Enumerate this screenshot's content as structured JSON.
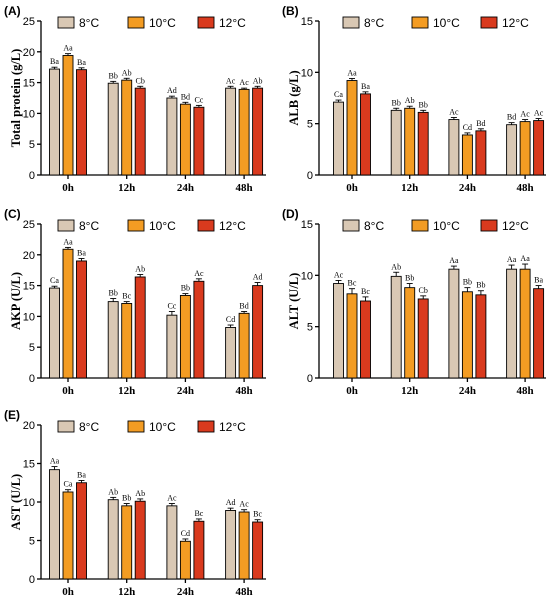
{
  "chart_data": [
    {
      "panel": "(A)",
      "type": "bar",
      "ylabel": "Total protein (g/L)",
      "categories": [
        "0h",
        "12h",
        "24h",
        "48h"
      ],
      "ylim": [
        0,
        25
      ],
      "yticks": [
        0,
        5,
        10,
        15,
        20,
        25
      ],
      "grid": false,
      "legend": "top",
      "series": [
        {
          "name": "8°C",
          "color": "#D9C8B4",
          "values": [
            17.2,
            14.9,
            12.5,
            14.1
          ],
          "errors": [
            0.3,
            0.3,
            0.3,
            0.3
          ],
          "labels": [
            "Ba",
            "Bb",
            "Ad",
            "Ac"
          ]
        },
        {
          "name": "10°C",
          "color": "#F39C23",
          "values": [
            19.4,
            15.4,
            11.5,
            13.9
          ],
          "errors": [
            0.3,
            0.3,
            0.3,
            0.2
          ],
          "labels": [
            "Aa",
            "Ab",
            "Bd",
            "Ac"
          ]
        },
        {
          "name": "12°C",
          "color": "#D93A1E",
          "values": [
            17.1,
            14.1,
            11.0,
            14.1
          ],
          "errors": [
            0.3,
            0.3,
            0.3,
            0.3
          ],
          "labels": [
            "Ba",
            "Cb",
            "Cc",
            "Ab"
          ]
        }
      ]
    },
    {
      "panel": "(B)",
      "type": "bar",
      "ylabel": "ALB (g/L)",
      "categories": [
        "0h",
        "12h",
        "24h",
        "48h"
      ],
      "ylim": [
        0,
        15
      ],
      "yticks": [
        0,
        5,
        10,
        15
      ],
      "grid": false,
      "legend": "top",
      "series": [
        {
          "name": "8°C",
          "color": "#D9C8B4",
          "values": [
            7.1,
            6.3,
            5.4,
            4.9
          ],
          "errors": [
            0.2,
            0.2,
            0.2,
            0.2
          ],
          "labels": [
            "Ca",
            "Bb",
            "Ac",
            "Bd"
          ]
        },
        {
          "name": "10°C",
          "color": "#F39C23",
          "values": [
            9.2,
            6.5,
            3.9,
            5.2
          ],
          "errors": [
            0.2,
            0.2,
            0.2,
            0.2
          ],
          "labels": [
            "Aa",
            "Ab",
            "Cd",
            "Ac"
          ]
        },
        {
          "name": "12°C",
          "color": "#D93A1E",
          "values": [
            7.9,
            6.1,
            4.3,
            5.3
          ],
          "errors": [
            0.2,
            0.2,
            0.2,
            0.2
          ],
          "labels": [
            "Ba",
            "Bb",
            "Bd",
            "Ac"
          ]
        }
      ]
    },
    {
      "panel": "(C)",
      "type": "bar",
      "ylabel": "AKP (U/L)",
      "categories": [
        "0h",
        "12h",
        "24h",
        "48h"
      ],
      "ylim": [
        0,
        25
      ],
      "yticks": [
        0,
        5,
        10,
        15,
        20,
        25
      ],
      "grid": false,
      "legend": "top",
      "series": [
        {
          "name": "8°C",
          "color": "#D9C8B4",
          "values": [
            14.6,
            12.4,
            10.2,
            8.2
          ],
          "errors": [
            0.3,
            0.5,
            0.6,
            0.4
          ],
          "labels": [
            "Ca",
            "Bb",
            "Cc",
            "Cd"
          ]
        },
        {
          "name": "10°C",
          "color": "#F39C23",
          "values": [
            20.9,
            12.1,
            13.4,
            10.5
          ],
          "errors": [
            0.3,
            0.3,
            0.3,
            0.3
          ],
          "labels": [
            "Aa",
            "Bc",
            "Bb",
            "Bd"
          ]
        },
        {
          "name": "12°C",
          "color": "#D93A1E",
          "values": [
            19.0,
            16.4,
            15.7,
            15.0
          ],
          "errors": [
            0.4,
            0.4,
            0.4,
            0.5
          ],
          "labels": [
            "Ba",
            "Ab",
            "Ac",
            "Ad"
          ]
        }
      ]
    },
    {
      "panel": "(D)",
      "type": "bar",
      "ylabel": "ALT (U/L)",
      "categories": [
        "0h",
        "12h",
        "24h",
        "48h"
      ],
      "ylim": [
        0,
        15
      ],
      "yticks": [
        0,
        5,
        10,
        15
      ],
      "grid": false,
      "legend": "top",
      "series": [
        {
          "name": "8°C",
          "color": "#D9C8B4",
          "values": [
            9.2,
            9.9,
            10.6,
            10.6
          ],
          "errors": [
            0.3,
            0.4,
            0.3,
            0.4
          ],
          "labels": [
            "Ac",
            "Ab",
            "Aa",
            "Aa"
          ]
        },
        {
          "name": "10°C",
          "color": "#F39C23",
          "values": [
            8.2,
            8.8,
            8.4,
            10.6
          ],
          "errors": [
            0.5,
            0.4,
            0.4,
            0.5
          ],
          "labels": [
            "Bc",
            "Bb",
            "Bb",
            "Aa"
          ]
        },
        {
          "name": "12°C",
          "color": "#D93A1E",
          "values": [
            7.5,
            7.7,
            8.1,
            8.7
          ],
          "errors": [
            0.4,
            0.3,
            0.4,
            0.3
          ],
          "labels": [
            "Bc",
            "Cb",
            "Bb",
            "Ba"
          ]
        }
      ]
    },
    {
      "panel": "(E)",
      "type": "bar",
      "ylabel": "AST (U/L)",
      "categories": [
        "0h",
        "12h",
        "24h",
        "48h"
      ],
      "ylim": [
        0,
        20
      ],
      "yticks": [
        0,
        5,
        10,
        15,
        20
      ],
      "grid": false,
      "legend": "top",
      "series": [
        {
          "name": "8°C",
          "color": "#D9C8B4",
          "values": [
            14.2,
            10.3,
            9.5,
            8.9
          ],
          "errors": [
            0.4,
            0.3,
            0.3,
            0.3
          ],
          "labels": [
            "Aa",
            "Ab",
            "Ac",
            "Ad"
          ]
        },
        {
          "name": "10°C",
          "color": "#F39C23",
          "values": [
            11.3,
            9.5,
            4.9,
            8.7
          ],
          "errors": [
            0.3,
            0.3,
            0.3,
            0.3
          ],
          "labels": [
            "Ca",
            "Bb",
            "Cd",
            "Ac"
          ]
        },
        {
          "name": "12°C",
          "color": "#D93A1E",
          "values": [
            12.5,
            10.1,
            7.5,
            7.4
          ],
          "errors": [
            0.3,
            0.3,
            0.3,
            0.3
          ],
          "labels": [
            "Ba",
            "Ab",
            "Bc",
            "Bc"
          ]
        }
      ]
    }
  ]
}
